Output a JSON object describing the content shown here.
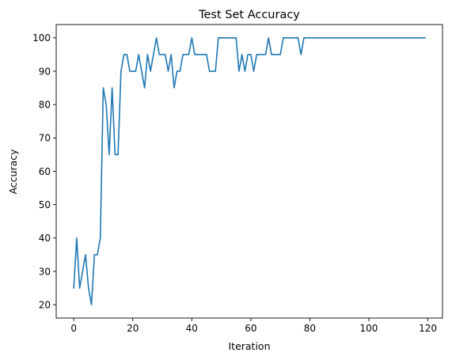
{
  "chart_data": {
    "type": "line",
    "title": "Test Set Accuracy",
    "xlabel": "Iteration",
    "ylabel": "Accuracy",
    "xlim": [
      -5.95,
      124.95
    ],
    "ylim": [
      16,
      104
    ],
    "xticks": [
      0,
      20,
      40,
      60,
      80,
      100,
      120
    ],
    "yticks": [
      20,
      30,
      40,
      50,
      60,
      70,
      80,
      90,
      100
    ],
    "grid": false,
    "series": [
      {
        "color": "#1f77b4",
        "x": [
          0,
          1,
          2,
          3,
          4,
          5,
          6,
          7,
          8,
          9,
          10,
          11,
          12,
          13,
          14,
          15,
          16,
          17,
          18,
          19,
          20,
          21,
          22,
          23,
          24,
          25,
          26,
          27,
          28,
          29,
          30,
          31,
          32,
          33,
          34,
          35,
          36,
          37,
          38,
          39,
          40,
          41,
          42,
          43,
          44,
          45,
          46,
          47,
          48,
          49,
          50,
          51,
          52,
          53,
          54,
          55,
          56,
          57,
          58,
          59,
          60,
          61,
          62,
          63,
          64,
          65,
          66,
          67,
          68,
          69,
          70,
          71,
          72,
          73,
          74,
          75,
          76,
          77,
          78,
          79,
          80,
          81,
          82,
          83,
          84,
          85,
          86,
          87,
          88,
          89,
          90,
          91,
          92,
          93,
          94,
          95,
          96,
          97,
          98,
          99,
          100,
          101,
          102,
          103,
          104,
          105,
          106,
          107,
          108,
          109,
          110,
          111,
          112,
          113,
          114,
          115,
          116,
          117,
          118,
          119
        ],
        "y": [
          25,
          40,
          25,
          30,
          35,
          25,
          20,
          35,
          35,
          40,
          85,
          80,
          65,
          85,
          65,
          65,
          90,
          95,
          95,
          90,
          90,
          90,
          95,
          90,
          85,
          95,
          90,
          95,
          100,
          95,
          95,
          95,
          90,
          95,
          85,
          90,
          90,
          95,
          95,
          95,
          100,
          95,
          95,
          95,
          95,
          95,
          90,
          90,
          90,
          100,
          100,
          100,
          100,
          100,
          100,
          100,
          90,
          95,
          90,
          95,
          95,
          90,
          95,
          95,
          95,
          95,
          100,
          95,
          95,
          95,
          95,
          100,
          100,
          100,
          100,
          100,
          100,
          95,
          100,
          100,
          100,
          100,
          100,
          100,
          100,
          100,
          100,
          100,
          100,
          100,
          100,
          100,
          100,
          100,
          100,
          100,
          100,
          100,
          100,
          100,
          100,
          100,
          100,
          100,
          100,
          100,
          100,
          100,
          100,
          100,
          100,
          100,
          100,
          100,
          100,
          100,
          100,
          100,
          100,
          100
        ]
      }
    ]
  }
}
